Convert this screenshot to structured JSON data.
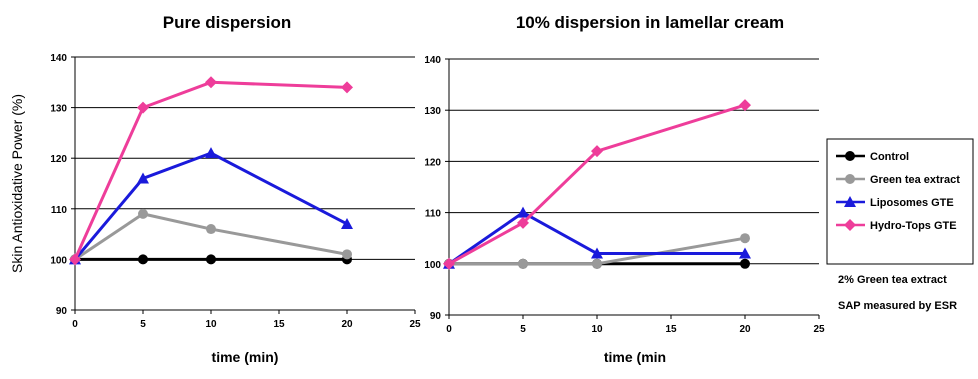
{
  "chart_data": [
    {
      "type": "line",
      "title": "Pure dispersion",
      "xlabel": "time (min)",
      "ylabel": "Skin Antioxidative  Power (%)",
      "xlim": [
        0,
        25
      ],
      "ylim": [
        90,
        140
      ],
      "xticks": [
        0,
        5,
        10,
        15,
        20,
        25
      ],
      "yticks": [
        90,
        100,
        110,
        120,
        130,
        140
      ],
      "grid": "horizontal",
      "series": [
        {
          "name": "Control",
          "color": "#000000",
          "marker": "circle",
          "x": [
            0,
            5,
            10,
            20
          ],
          "y": [
            100,
            100,
            100,
            100
          ]
        },
        {
          "name": "Green tea extract",
          "color": "#999999",
          "marker": "circle",
          "x": [
            0,
            5,
            10,
            20
          ],
          "y": [
            100,
            109,
            106,
            101
          ]
        },
        {
          "name": "Liposomes GTE",
          "color": "#1a1adb",
          "marker": "triangle",
          "x": [
            0,
            5,
            10,
            20
          ],
          "y": [
            100,
            116,
            121,
            107
          ]
        },
        {
          "name": "Hydro-Tops GTE",
          "color": "#ee3d9a",
          "marker": "diamond",
          "x": [
            0,
            5,
            10,
            20
          ],
          "y": [
            100,
            130,
            135,
            134
          ]
        }
      ]
    },
    {
      "type": "line",
      "title": "10% dispersion in lamellar cream",
      "xlabel": "time (min",
      "ylabel": "",
      "xlim": [
        0,
        25
      ],
      "ylim": [
        90,
        140
      ],
      "xticks": [
        0,
        5,
        10,
        15,
        20,
        25
      ],
      "yticks": [
        90,
        100,
        110,
        120,
        130,
        140
      ],
      "grid": "horizontal",
      "series": [
        {
          "name": "Control",
          "color": "#000000",
          "marker": "circle",
          "x": [
            0,
            5,
            10,
            20
          ],
          "y": [
            100,
            100,
            100,
            100
          ]
        },
        {
          "name": "Green tea extract",
          "color": "#999999",
          "marker": "circle",
          "x": [
            0,
            5,
            10,
            20
          ],
          "y": [
            100,
            100,
            100,
            105
          ]
        },
        {
          "name": "Liposomes GTE",
          "color": "#1a1adb",
          "marker": "triangle",
          "x": [
            0,
            5,
            10,
            20
          ],
          "y": [
            100,
            110,
            102,
            102
          ]
        },
        {
          "name": "Hydro-Tops GTE",
          "color": "#ee3d9a",
          "marker": "diamond",
          "x": [
            0,
            5,
            10,
            20
          ],
          "y": [
            100,
            108,
            122,
            131
          ]
        }
      ]
    }
  ],
  "legend": {
    "placement": "right",
    "entries": [
      {
        "label": "Control",
        "color": "#000000",
        "marker": "circle"
      },
      {
        "label": "Green tea extract",
        "color": "#999999",
        "marker": "circle"
      },
      {
        "label": "Liposomes GTE",
        "color": "#1a1adb",
        "marker": "triangle"
      },
      {
        "label": "Hydro-Tops GTE",
        "color": "#ee3d9a",
        "marker": "diamond"
      }
    ]
  },
  "notes": [
    "2% Green tea extract",
    "SAP measured by ESR"
  ]
}
